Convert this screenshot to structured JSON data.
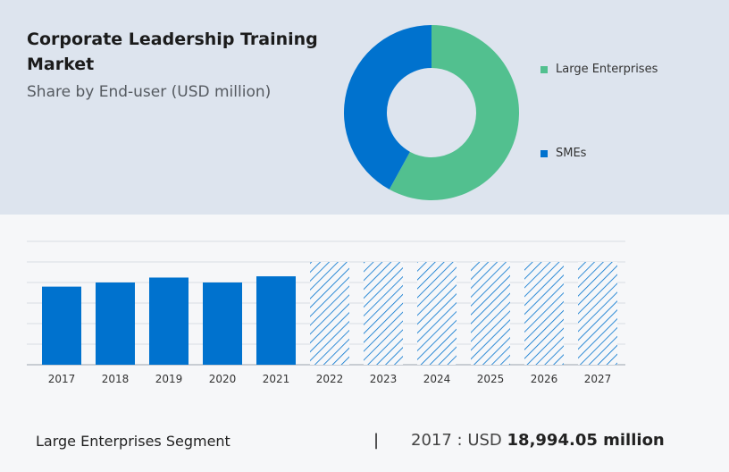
{
  "header": {
    "title": "Corporate Leadership Training Market",
    "subtitle": "Share by End-user (USD million)"
  },
  "colors": {
    "large_enterprises": "#52c08f",
    "smes": "#0072ce",
    "bar": "#0072ce",
    "forecast_hatch": "#0072ce"
  },
  "chart_data": [
    {
      "type": "pie",
      "donut": true,
      "title": "",
      "slices": [
        {
          "label": "Large Enterprises",
          "value": 58
        },
        {
          "label": "SMEs",
          "value": 42
        }
      ],
      "legend_position": "right"
    },
    {
      "type": "bar",
      "categories": [
        "2017",
        "2018",
        "2019",
        "2020",
        "2021",
        "2022",
        "2023",
        "2024",
        "2025",
        "2026",
        "2027"
      ],
      "values": [
        18994.05,
        20000,
        21200,
        20000,
        21500,
        null,
        null,
        null,
        null,
        null,
        null
      ],
      "forecast_categories": [
        "2022",
        "2023",
        "2024",
        "2025",
        "2026",
        "2027"
      ],
      "forecast_display_value": 25000,
      "ylim": [
        0,
        30000
      ],
      "grid": true,
      "xlabel": "",
      "ylabel": ""
    }
  ],
  "footer": {
    "segment": "Large Enterprises Segment",
    "separator": "|",
    "value_prefix": "2017 : USD",
    "value": "18,994.05 million"
  }
}
